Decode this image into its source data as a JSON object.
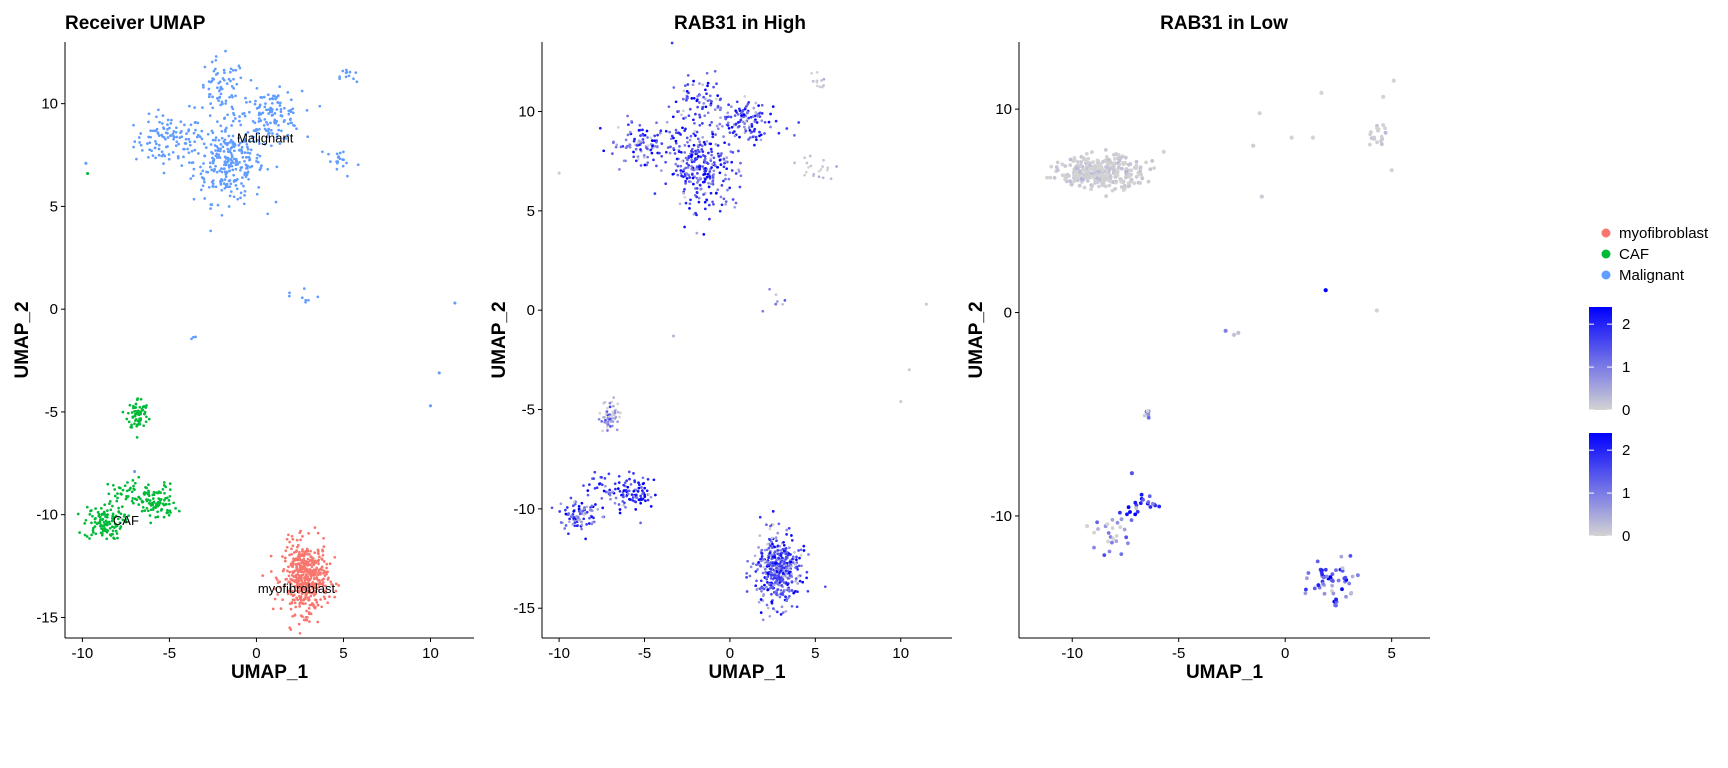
{
  "chart_data": [
    {
      "type": "scatter",
      "title": "Receiver UMAP",
      "xlabel": "UMAP_1",
      "ylabel": "UMAP_2",
      "xlim": [
        -11,
        12.5
      ],
      "ylim": [
        -16,
        13
      ],
      "xticks": [
        -10,
        -5,
        0,
        5,
        10
      ],
      "yticks": [
        -15,
        -10,
        -5,
        0,
        5,
        10
      ],
      "color_by": "cell_type",
      "groups": [
        {
          "name": "myofibroblast",
          "color": "#F8766D"
        },
        {
          "name": "CAF",
          "color": "#00BA38"
        },
        {
          "name": "Malignant",
          "color": "#619CFF"
        }
      ],
      "clusters": [
        {
          "group": "Malignant",
          "cx": -5,
          "cy": 8.2,
          "sx": 1.0,
          "sy": 0.6,
          "n": 110
        },
        {
          "group": "Malignant",
          "cx": -1.6,
          "cy": 7.2,
          "sx": 1.0,
          "sy": 1.0,
          "n": 280
        },
        {
          "group": "Malignant",
          "cx": -2.0,
          "cy": 10.6,
          "sx": 0.7,
          "sy": 0.8,
          "n": 70
        },
        {
          "group": "Malignant",
          "cx": 0.8,
          "cy": 9.4,
          "sx": 0.9,
          "sy": 0.6,
          "n": 130
        },
        {
          "group": "Malignant",
          "cx": 5.3,
          "cy": 11.3,
          "sx": 0.25,
          "sy": 0.25,
          "n": 12
        },
        {
          "group": "Malignant",
          "cx": 4.8,
          "cy": 7.2,
          "sx": 0.6,
          "sy": 0.4,
          "n": 20
        },
        {
          "group": "Malignant",
          "cx": 2.5,
          "cy": 0.6,
          "sx": 0.6,
          "sy": 0.3,
          "n": 8
        },
        {
          "group": "Malignant",
          "cx": -3.4,
          "cy": -1.4,
          "sx": 0.4,
          "sy": 0.05,
          "n": 3
        },
        {
          "group": "CAF",
          "cx": -6.8,
          "cy": -5.1,
          "sx": 0.3,
          "sy": 0.4,
          "n": 70
        },
        {
          "group": "CAF",
          "cx": -8.8,
          "cy": -10.4,
          "sx": 0.55,
          "sy": 0.4,
          "n": 110
        },
        {
          "group": "CAF",
          "cx": -5.8,
          "cy": -9.4,
          "sx": 0.6,
          "sy": 0.45,
          "n": 100
        },
        {
          "group": "CAF",
          "cx": -7.6,
          "cy": -9.0,
          "sx": 0.5,
          "sy": 0.4,
          "n": 40
        },
        {
          "group": "myofibroblast",
          "cx": 2.8,
          "cy": -13.1,
          "sx": 0.65,
          "sy": 0.85,
          "n": 480
        }
      ],
      "outliers": [
        {
          "group": "Malignant",
          "x": -9.8,
          "y": 7.1
        },
        {
          "group": "CAF",
          "x": -9.7,
          "y": 6.6
        },
        {
          "group": "Malignant",
          "x": 11.4,
          "y": 0.3
        },
        {
          "group": "Malignant",
          "x": 10.5,
          "y": -3.1
        },
        {
          "group": "Malignant",
          "x": 10.0,
          "y": -4.7
        },
        {
          "group": "Malignant",
          "x": -7.0,
          "y": -7.9
        }
      ],
      "annotations": [
        {
          "text": "Malignant",
          "x": 0.5,
          "y": 8.1
        },
        {
          "text": "CAF",
          "x": -7.5,
          "y": -10.5
        },
        {
          "text": "myofibroblast",
          "x": 2.3,
          "y": -13.8
        }
      ]
    },
    {
      "type": "scatter",
      "title": "RAB31 in High",
      "xlabel": "UMAP_1",
      "ylabel": "UMAP_2",
      "xlim": [
        -11,
        13
      ],
      "ylim": [
        -16.5,
        13.5
      ],
      "xticks": [
        -10,
        -5,
        0,
        5,
        10
      ],
      "yticks": [
        -15,
        -10,
        -5,
        0,
        5,
        10
      ],
      "color_by": "RAB31 expression",
      "color_scale": {
        "low": "#D3D3D3",
        "high": "#0000FF",
        "min": 0,
        "max": 2.5
      },
      "clusters": [
        {
          "cx": -5,
          "cy": 8.2,
          "sx": 1.0,
          "sy": 0.6,
          "n": 110,
          "expr": 1.4
        },
        {
          "cx": -1.6,
          "cy": 7.2,
          "sx": 1.0,
          "sy": 1.0,
          "n": 280,
          "expr": 1.6
        },
        {
          "cx": -2.0,
          "cy": 10.6,
          "sx": 0.7,
          "sy": 0.8,
          "n": 70,
          "expr": 1.6
        },
        {
          "cx": 0.8,
          "cy": 9.4,
          "sx": 0.9,
          "sy": 0.6,
          "n": 130,
          "expr": 1.5
        },
        {
          "cx": 5.3,
          "cy": 11.5,
          "sx": 0.25,
          "sy": 0.2,
          "n": 12,
          "expr": 0.1
        },
        {
          "cx": 4.8,
          "cy": 7.2,
          "sx": 0.6,
          "sy": 0.4,
          "n": 20,
          "expr": 0.2
        },
        {
          "cx": 2.6,
          "cy": 0.4,
          "sx": 0.6,
          "sy": 0.3,
          "n": 8,
          "expr": 1.2
        },
        {
          "cx": -7.0,
          "cy": -5.3,
          "sx": 0.3,
          "sy": 0.4,
          "n": 60,
          "expr": 0.6
        },
        {
          "cx": -8.8,
          "cy": -10.3,
          "sx": 0.55,
          "sy": 0.4,
          "n": 90,
          "expr": 1.4
        },
        {
          "cx": -5.6,
          "cy": -9.3,
          "sx": 0.6,
          "sy": 0.45,
          "n": 90,
          "expr": 2.0
        },
        {
          "cx": -7.4,
          "cy": -8.9,
          "sx": 0.5,
          "sy": 0.4,
          "n": 30,
          "expr": 1.6
        },
        {
          "cx": 2.8,
          "cy": -13.1,
          "sx": 0.65,
          "sy": 0.9,
          "n": 420,
          "expr": 1.5
        }
      ],
      "outliers": [
        {
          "x": -10.0,
          "y": 6.9,
          "expr": 0.1
        },
        {
          "x": 11.5,
          "y": 0.3,
          "expr": 0.1
        },
        {
          "x": 10.5,
          "y": -3.0,
          "expr": 0.1
        },
        {
          "x": 10.0,
          "y": -4.6,
          "expr": 0.1
        },
        {
          "x": -3.3,
          "y": -1.3,
          "expr": 0.3
        }
      ]
    },
    {
      "type": "scatter",
      "title": "RAB31 in Low",
      "xlabel": "UMAP_1",
      "ylabel": "UMAP_2",
      "xlim": [
        -12.5,
        6.8
      ],
      "ylim": [
        -16,
        13.3
      ],
      "xticks": [
        -10,
        -5,
        0,
        5
      ],
      "yticks": [
        -10,
        0,
        10
      ],
      "color_by": "RAB31 expression",
      "color_scale": {
        "low": "#D3D3D3",
        "high": "#0000FF",
        "min": 0,
        "max": 2.5
      },
      "clusters": [
        {
          "cx": -8.6,
          "cy": 6.9,
          "sx": 0.95,
          "sy": 0.4,
          "n": 320,
          "expr": 0.05
        },
        {
          "cx": 4.3,
          "cy": 8.6,
          "sx": 0.25,
          "sy": 0.3,
          "n": 20,
          "expr": 0.05
        },
        {
          "cx": -6.4,
          "cy": -5.1,
          "sx": 0.1,
          "sy": 0.2,
          "n": 6,
          "expr": 0.4
        },
        {
          "cx": -6.6,
          "cy": -9.5,
          "sx": 0.5,
          "sy": 0.4,
          "n": 22,
          "expr": 1.9
        },
        {
          "cx": -8.0,
          "cy": -11.1,
          "sx": 0.45,
          "sy": 0.5,
          "n": 24,
          "expr": 0.5
        },
        {
          "cx": 2.2,
          "cy": -13.4,
          "sx": 0.6,
          "sy": 0.65,
          "n": 55,
          "expr": 1.3
        }
      ],
      "outliers": [
        {
          "x": 1.7,
          "y": 10.8,
          "expr": 0
        },
        {
          "x": -1.2,
          "y": 9.8,
          "expr": 0
        },
        {
          "x": 0.3,
          "y": 8.6,
          "expr": 0
        },
        {
          "x": 1.3,
          "y": 8.6,
          "expr": 0
        },
        {
          "x": 5.1,
          "y": 11.4,
          "expr": 0
        },
        {
          "x": 4.6,
          "y": 10.6,
          "expr": 0
        },
        {
          "x": 5.0,
          "y": 7.0,
          "expr": 0
        },
        {
          "x": -1.1,
          "y": 5.7,
          "expr": 0.1
        },
        {
          "x": -1.5,
          "y": 8.2,
          "expr": 0.1
        },
        {
          "x": -5.7,
          "y": 7.9,
          "expr": 0
        },
        {
          "x": 1.9,
          "y": 1.1,
          "expr": 2.6
        },
        {
          "x": -2.8,
          "y": -0.9,
          "expr": 1.0
        },
        {
          "x": -2.4,
          "y": -1.1,
          "expr": 0.2
        },
        {
          "x": -2.2,
          "y": -1.0,
          "expr": 0.2
        },
        {
          "x": 4.3,
          "y": 0.1,
          "expr": 0
        },
        {
          "x": -9.3,
          "y": -10.5,
          "expr": 0
        },
        {
          "x": -7.2,
          "y": -7.9,
          "expr": 1.5
        }
      ]
    }
  ],
  "legend": {
    "cell_types": [
      {
        "name": "myofibroblast",
        "color": "#F8766D"
      },
      {
        "name": "CAF",
        "color": "#00BA38"
      },
      {
        "name": "Malignant",
        "color": "#619CFF"
      }
    ],
    "colorbars": [
      {
        "ticks": [
          "2",
          "1",
          "0"
        ],
        "low": "#D3D3D3",
        "high": "#0000FF"
      },
      {
        "ticks": [
          "2",
          "1",
          "0"
        ],
        "low": "#D3D3D3",
        "high": "#0000FF"
      }
    ]
  }
}
